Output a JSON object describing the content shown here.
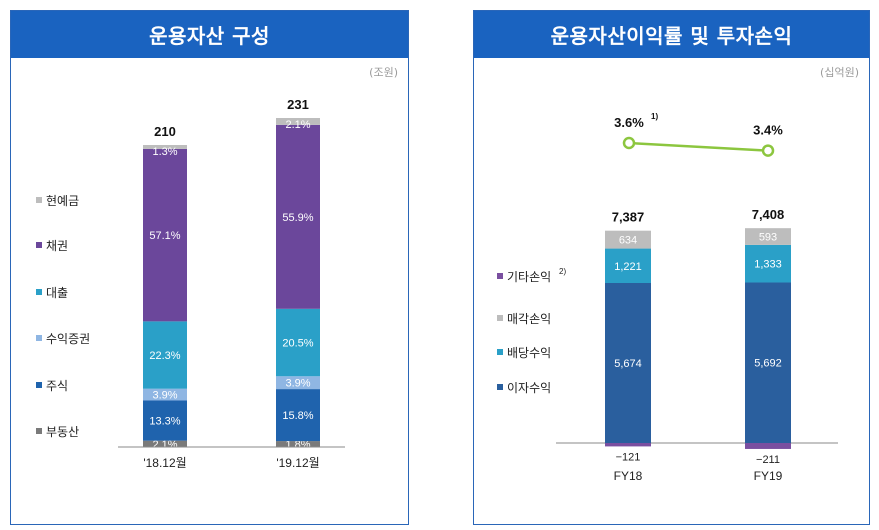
{
  "colors": {
    "header_bg": "#1a63c0",
    "cash": "#bdbdbd",
    "bonds": "#6b479b",
    "loans": "#2aa0c8",
    "beneficiary": "#8fb6e3",
    "stocks": "#1f63ad",
    "realestate": "#7a7a7a",
    "interest": "#2a5f9e",
    "dividend": "#2aa0c8",
    "disposal": "#bdbdbd",
    "other": "#7a4fa0",
    "line": "#8cc63f"
  },
  "left_panel": {
    "title": "운용자산 구성",
    "unit": "(조원)"
  },
  "right_panel": {
    "title": "운용자산이익률 및 투자손익",
    "unit": "(십억원)"
  },
  "chart_data": [
    {
      "type": "bar",
      "stacked": true,
      "normalized": true,
      "title": "운용자산 구성",
      "unit": "조원",
      "categories": [
        "'18.12월",
        "'19.12월"
      ],
      "totals": [
        "210",
        "231"
      ],
      "series": [
        {
          "name": "부동산",
          "color_key": "realestate",
          "values": [
            2.1,
            1.8
          ],
          "labels": [
            "2.1%",
            "1.8%"
          ]
        },
        {
          "name": "주식",
          "color_key": "stocks",
          "values": [
            13.3,
            15.8
          ],
          "labels": [
            "13.3%",
            "15.8%"
          ]
        },
        {
          "name": "수익증권",
          "color_key": "beneficiary",
          "values": [
            3.9,
            3.9
          ],
          "labels": [
            "3.9%",
            "3.9%"
          ]
        },
        {
          "name": "대출",
          "color_key": "loans",
          "values": [
            22.3,
            20.5
          ],
          "labels": [
            "22.3%",
            "20.5%"
          ]
        },
        {
          "name": "채권",
          "color_key": "bonds",
          "values": [
            57.1,
            55.9
          ],
          "labels": [
            "57.1%",
            "55.9%"
          ]
        },
        {
          "name": "현예금",
          "color_key": "cash",
          "values": [
            1.3,
            2.1
          ],
          "labels": [
            "1.3%",
            "2.1%"
          ]
        }
      ],
      "legend_order": [
        "현예금",
        "채권",
        "대출",
        "수익증권",
        "주식",
        "부동산"
      ],
      "legend_position": "left"
    },
    {
      "type": "bar",
      "stacked": true,
      "title": "운용자산이익률 및 투자손익",
      "unit": "십억원",
      "categories": [
        "FY18",
        "FY19"
      ],
      "totals": [
        "7,387",
        "7,408"
      ],
      "series": [
        {
          "name": "이자수익",
          "color_key": "interest",
          "values": [
            5674,
            5692
          ],
          "labels": [
            "5,674",
            "5,692"
          ]
        },
        {
          "name": "배당수익",
          "color_key": "dividend",
          "values": [
            1221,
            1333
          ],
          "labels": [
            "1,221",
            "1,333"
          ]
        },
        {
          "name": "매각손익",
          "color_key": "disposal",
          "values": [
            634,
            593
          ],
          "labels": [
            "634",
            "593"
          ]
        },
        {
          "name": "기타손익",
          "color_key": "other",
          "values": [
            -121,
            -211
          ],
          "labels": [
            "−121",
            "−211"
          ]
        }
      ],
      "legend_order": [
        "기타손익",
        "매각손익",
        "배당수익",
        "이자수익"
      ],
      "legend_footnote": {
        "기타손익": "2)"
      },
      "legend_position": "left",
      "line": {
        "name": "운용자산이익률",
        "values": [
          3.6,
          3.4
        ],
        "labels": [
          "3.6%",
          "3.4%"
        ],
        "footnotes": [
          "1)",
          ""
        ]
      }
    }
  ]
}
